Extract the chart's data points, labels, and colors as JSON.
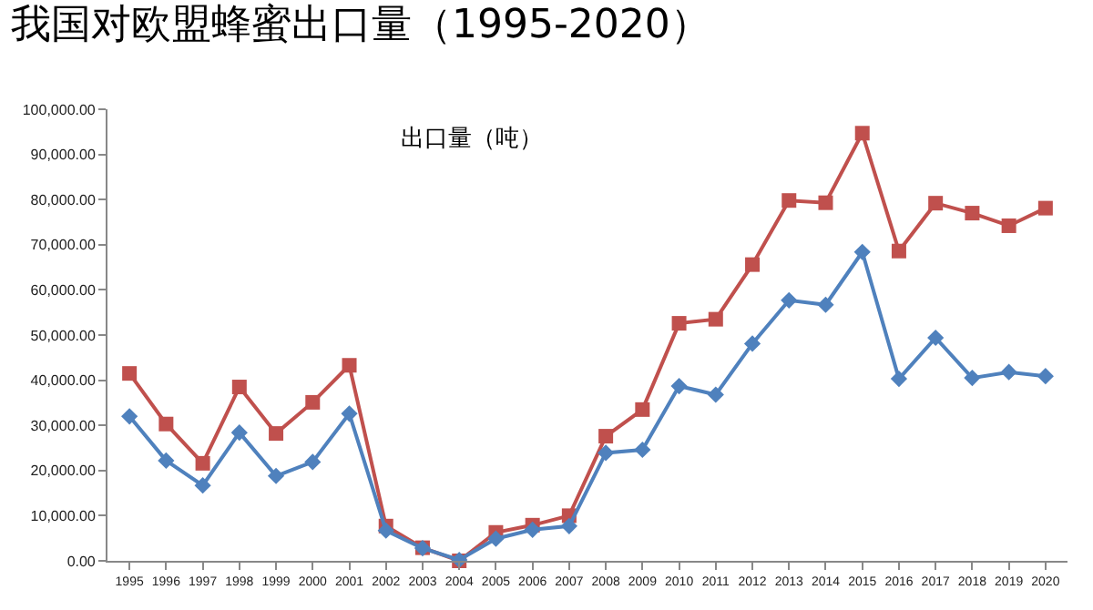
{
  "chart_data": {
    "type": "line",
    "title": "我国对欧盟蜂蜜出口量（1995-2020）",
    "subtitle": "出口量（吨）",
    "categories": [
      "1995",
      "1996",
      "1997",
      "1998",
      "1999",
      "2000",
      "2001",
      "2002",
      "2003",
      "2004",
      "2005",
      "2006",
      "2007",
      "2008",
      "2009",
      "2010",
      "2011",
      "2012",
      "2013",
      "2014",
      "2015",
      "2016",
      "2017",
      "2018",
      "2019",
      "2020"
    ],
    "series": [
      {
        "color": "#c0504d",
        "marker": "square",
        "values": [
          41500,
          30300,
          21600,
          38500,
          28200,
          35100,
          43300,
          7700,
          2900,
          0,
          6300,
          7900,
          10000,
          27600,
          33500,
          52600,
          53500,
          65600,
          79800,
          79300,
          94700,
          68600,
          79200,
          77000,
          74200,
          78100
        ]
      },
      {
        "color": "#4f81bd",
        "marker": "diamond",
        "values": [
          32000,
          22200,
          16700,
          28400,
          18800,
          21900,
          32600,
          6700,
          2800,
          200,
          4900,
          6900,
          7700,
          23900,
          24600,
          38700,
          36800,
          48100,
          57700,
          56700,
          68400,
          40300,
          49400,
          40500,
          41800,
          40900
        ]
      }
    ],
    "ylim": [
      0,
      100000
    ],
    "yticks": [
      {
        "value": 0,
        "label": "0.00"
      },
      {
        "value": 10000,
        "label": "10,000.00"
      },
      {
        "value": 20000,
        "label": "20,000.00"
      },
      {
        "value": 30000,
        "label": "30,000.00"
      },
      {
        "value": 40000,
        "label": "40,000.00"
      },
      {
        "value": 50000,
        "label": "50,000.00"
      },
      {
        "value": 60000,
        "label": "60,000.00"
      },
      {
        "value": 70000,
        "label": "70,000.00"
      },
      {
        "value": 80000,
        "label": "80,000.00"
      },
      {
        "value": 90000,
        "label": "90,000.00"
      },
      {
        "value": 100000,
        "label": "100,000.00"
      }
    ],
    "legend": false,
    "line_style": "solid"
  }
}
